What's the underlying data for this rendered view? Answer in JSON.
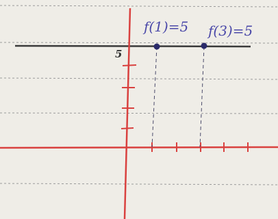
{
  "labels": {
    "point_1": "f(1)=5",
    "point_2": "f(3)=5",
    "y_mark": "5"
  }
}
